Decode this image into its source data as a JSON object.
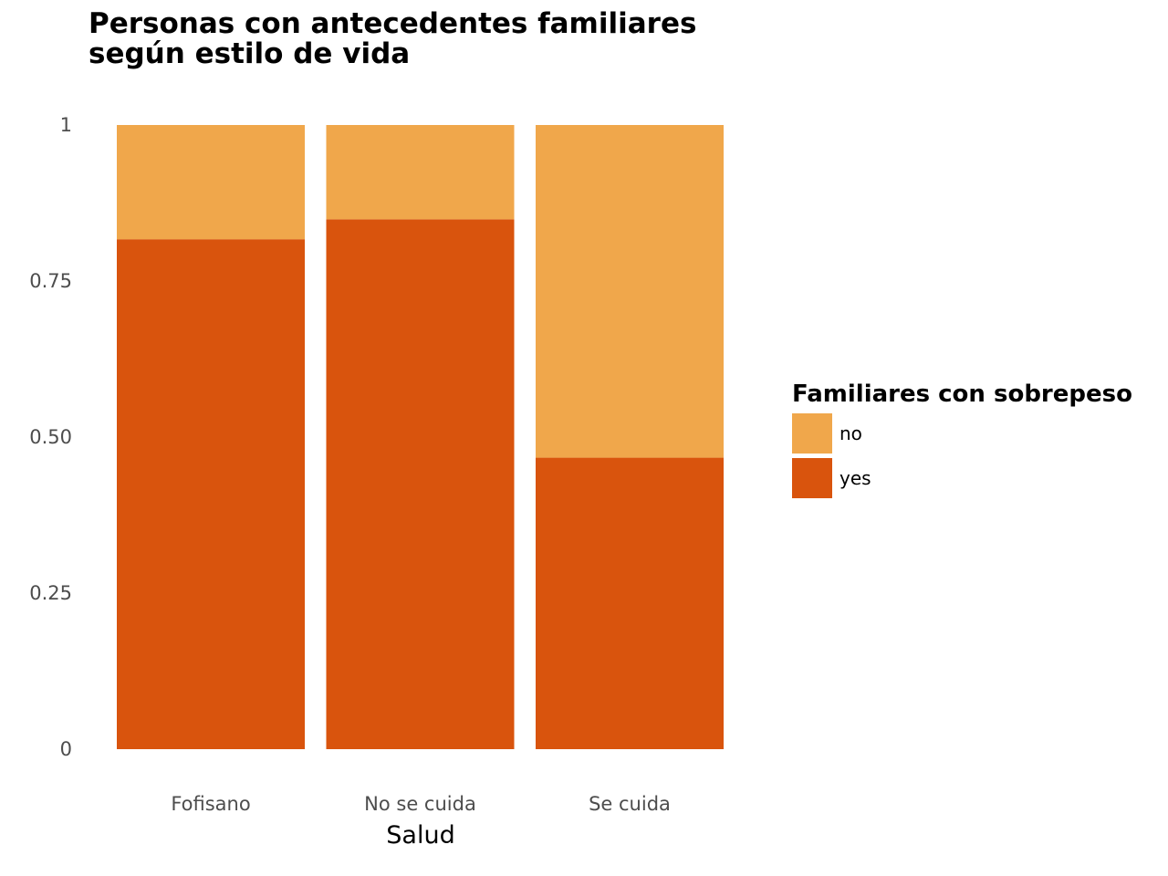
{
  "chart_data": {
    "type": "bar",
    "stacked": true,
    "normalized": true,
    "title_lines": [
      "Personas con antecedentes familiares",
      "según estilo de vida"
    ],
    "xlabel": "Salud",
    "ylabel": "",
    "ylim": [
      0,
      1
    ],
    "yticks": [
      0,
      0.25,
      0.5,
      0.75,
      1
    ],
    "ytick_labels": [
      "0",
      "0.25",
      "0.50",
      "0.75",
      "1"
    ],
    "categories": [
      "Fofisano",
      "No se cuida",
      "Se cuida"
    ],
    "series": [
      {
        "name": "yes",
        "color": "#D9540D",
        "values": [
          0.817,
          0.849,
          0.467
        ]
      },
      {
        "name": "no",
        "color": "#F0A74B",
        "values": [
          0.183,
          0.151,
          0.533
        ]
      }
    ],
    "legend": {
      "title": "Familiares con sobrepeso",
      "position": "right",
      "items": [
        {
          "label": "no",
          "color": "#F0A74B"
        },
        {
          "label": "yes",
          "color": "#D9540D"
        }
      ]
    },
    "grid": false
  }
}
